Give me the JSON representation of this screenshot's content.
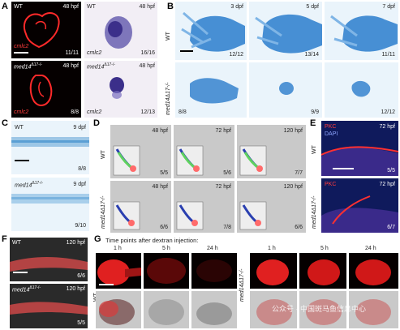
{
  "panel_letters": [
    "A",
    "B",
    "C",
    "D",
    "E",
    "F",
    "G"
  ],
  "colors": {
    "red": "#ff2a2a",
    "blue": "#2a7ccc",
    "purple": "#4b3f9e",
    "green": "#5fd15f"
  },
  "A": {
    "tl": {
      "genotype": "WT",
      "stage": "48 hpf",
      "marker": "cmlc2",
      "count": "11/11"
    },
    "tr": {
      "genotype": "WT",
      "stage": "48 hpf",
      "marker": "cmlc2",
      "count": "16/16"
    },
    "bl": {
      "genotype": "med14",
      "superscript": "Δ17-/-",
      "stage": "48 hpf",
      "marker": "cmlc2",
      "count": "8/8"
    },
    "br": {
      "genotype": "med14",
      "superscript": "Δ17-/-",
      "stage": "48 hpf",
      "marker": "cmlc2",
      "count": "12/13"
    }
  },
  "B": {
    "row_wt": "WT",
    "row_mut": "med14Δ17-/-",
    "top": [
      {
        "stage": "3 dpf",
        "count": "12/12"
      },
      {
        "stage": "5 dpf",
        "count": "13/14"
      },
      {
        "stage": "7 dpf",
        "count": "11/11"
      }
    ],
    "bottom": [
      {
        "count": "8/8"
      },
      {
        "count": "9/9"
      },
      {
        "count": "12/12"
      }
    ]
  },
  "C": {
    "top": {
      "genotype": "WT",
      "stage": "9 dpf",
      "count": "8/8"
    },
    "bottom": {
      "genotype": "med14",
      "superscript": "Δ17-/-",
      "stage": "9 dpf",
      "count": "9/10"
    }
  },
  "D": {
    "row_wt": "WT",
    "row_mut": "med14Δ17-/-",
    "top": [
      {
        "stage": "48 hpf",
        "count": "5/5"
      },
      {
        "stage": "72 hpf",
        "count": "5/6"
      },
      {
        "stage": "120 hpf",
        "count": "7/7"
      }
    ],
    "bottom": [
      {
        "stage": "48 hpf",
        "count": "6/6"
      },
      {
        "stage": "72 hpf",
        "count": "7/8"
      },
      {
        "stage": "120 hpf",
        "count": "6/6"
      }
    ]
  },
  "E": {
    "top": {
      "marker": "PKC",
      "stain": "DAPI",
      "stage": "72 hpf",
      "count": "5/5"
    },
    "bottom": {
      "marker": "PKC",
      "stage": "72 hpf",
      "count": "6/7"
    },
    "row_wt": "WT",
    "row_mut": "med14Δ17-/-"
  },
  "F": {
    "top": {
      "genotype": "WT",
      "stage": "120 hpf",
      "count": "6/6"
    },
    "bottom": {
      "genotype": "med14",
      "superscript": "Δ17-/-",
      "stage": "120 hpf",
      "count": "5/5"
    }
  },
  "G": {
    "title": "Time points after dextran injection:",
    "wt_label": "WT",
    "mut_label": "med14Δ17-/-",
    "times": [
      "1 h",
      "5 h",
      "24 h"
    ]
  },
  "watermark": "公众号 · 中国斑马鱼信息中心"
}
